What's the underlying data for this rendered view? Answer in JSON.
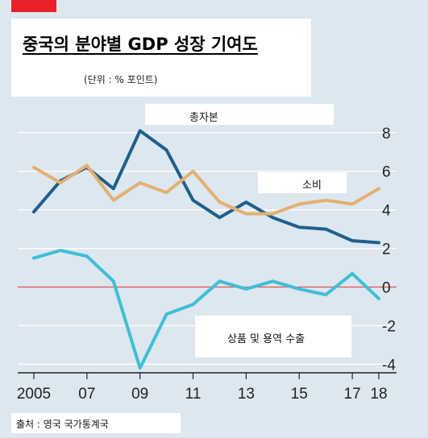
{
  "title": "중국의 분야별 GDP 성장 기여도",
  "unit_note": "(단위 : % 포인트)",
  "source": "출처 : 영국 국가통계국",
  "colors": {
    "background": "#dde7f0",
    "grid": "#ffffff",
    "zero_line": "#e0505a",
    "investment": "#1f5f8b",
    "consumption": "#e3b072",
    "exports": "#3fbfd3",
    "axis": "#222222"
  },
  "chart_data": {
    "type": "line",
    "x": [
      2005,
      2006,
      2007,
      2008,
      2009,
      2010,
      2011,
      2012,
      2013,
      2014,
      2015,
      2016,
      2017,
      2018
    ],
    "x_tick_labels": [
      "2005",
      "07",
      "09",
      "11",
      "13",
      "15",
      "17",
      "18"
    ],
    "x_tick_values": [
      2005,
      2007,
      2009,
      2011,
      2013,
      2015,
      2017,
      2018
    ],
    "y_ticks": [
      "8",
      "6",
      "4",
      "2",
      "0",
      "-2",
      "-4"
    ],
    "y_tick_values": [
      8,
      6,
      4,
      2,
      0,
      -2,
      -4
    ],
    "ylim": [
      -4.4,
      8.7
    ],
    "series": [
      {
        "name": "총자본",
        "color_key": "investment",
        "values": [
          3.9,
          5.5,
          6.2,
          5.1,
          8.1,
          7.1,
          4.5,
          3.6,
          4.4,
          3.6,
          3.1,
          3.0,
          2.4,
          2.3
        ]
      },
      {
        "name": "소비",
        "color_key": "consumption",
        "values": [
          6.2,
          5.4,
          6.3,
          4.5,
          5.4,
          4.9,
          6.0,
          4.4,
          3.8,
          3.8,
          4.3,
          4.5,
          4.3,
          5.1
        ]
      },
      {
        "name": "상품 및 용역 수출",
        "color_key": "exports",
        "values": [
          1.5,
          1.9,
          1.6,
          0.3,
          -4.2,
          -1.4,
          -0.9,
          0.3,
          -0.1,
          0.3,
          -0.1,
          -0.4,
          0.7,
          -0.6
        ]
      }
    ]
  }
}
